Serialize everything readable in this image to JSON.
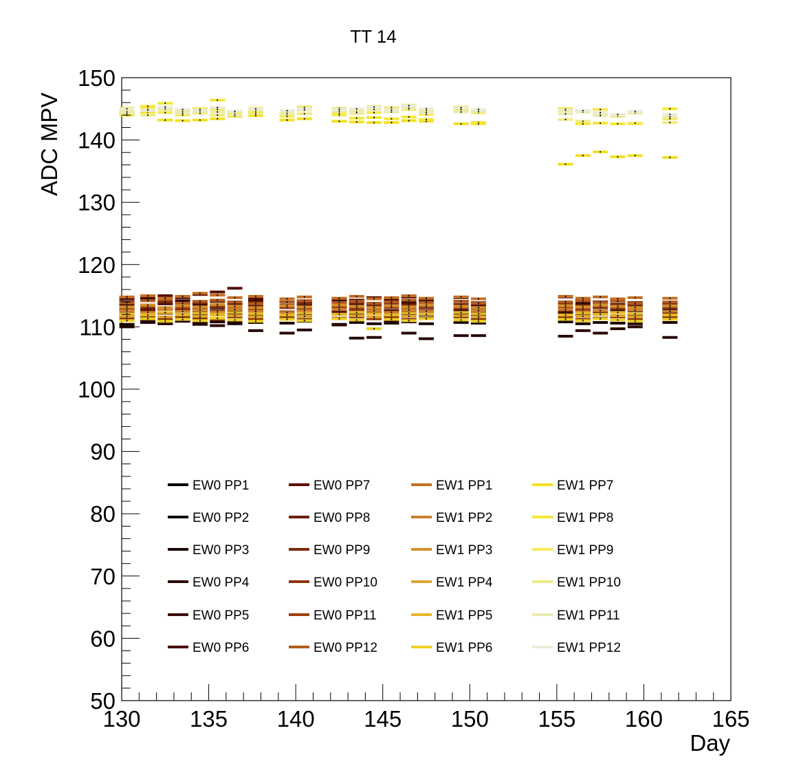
{
  "chart_data": {
    "type": "scatter",
    "title": "TT 14",
    "xlabel": "Day",
    "ylabel": "ADC MPV",
    "xlim": [
      130,
      165
    ],
    "ylim": [
      50,
      150
    ],
    "x_ticks": [
      "130",
      "135",
      "140",
      "145",
      "150",
      "155",
      "160",
      "165"
    ],
    "y_ticks": [
      "50",
      "60",
      "70",
      "80",
      "90",
      "100",
      "110",
      "120",
      "130",
      "140",
      "150"
    ],
    "grid": false,
    "legend_position": "lower-left",
    "days": [
      130.3,
      131.5,
      132.5,
      133.5,
      134.5,
      135.5,
      136.5,
      137.7,
      139.5,
      140.5,
      142.5,
      143.5,
      144.5,
      145.5,
      146.5,
      147.5,
      149.5,
      150.5,
      155.5,
      156.5,
      157.5,
      158.5,
      159.5,
      161.5
    ],
    "series": [
      {
        "name": "EW0 PP1",
        "color": "#000000",
        "values": [
          111.8,
          111.6,
          112.2,
          112.0,
          111.9,
          112.4,
          112.1,
          111.7,
          112.0,
          111.8,
          112.1,
          111.9,
          112.2,
          111.8,
          112.0,
          111.9,
          112.0,
          111.8,
          112.1,
          111.9,
          112.0,
          111.7,
          111.9,
          111.8
        ]
      },
      {
        "name": "EW0 PP2",
        "color": "#120804",
        "values": [
          112.8,
          112.5,
          113.0,
          112.7,
          112.9,
          113.1,
          112.6,
          112.9,
          113.2,
          112.8,
          112.5,
          112.9,
          112.7,
          112.6,
          112.9,
          112.5,
          112.8,
          112.6,
          112.9,
          112.7,
          112.5,
          112.8,
          112.6,
          112.9
        ]
      },
      {
        "name": "EW0 PP3",
        "color": "#1e0805",
        "values": [
          110.4,
          110.7,
          110.5,
          110.9,
          110.6,
          110.8,
          110.5,
          110.7,
          110.6,
          110.9,
          110.4,
          110.7,
          110.5,
          110.6,
          110.8,
          110.5,
          110.7,
          110.6,
          110.8,
          110.5,
          110.7,
          110.6,
          110.5,
          110.7
        ]
      },
      {
        "name": "EW0 PP4",
        "color": "#2c0806",
        "values": [
          110.0,
          110.9,
          110.6,
          111.0,
          110.4,
          110.2,
          110.9,
          109.4,
          109.0,
          109.5,
          110.3,
          108.2,
          108.3,
          110.9,
          109.0,
          108.1,
          108.6,
          108.6,
          108.5,
          109.4,
          109.0,
          109.7,
          110.0,
          108.3
        ]
      },
      {
        "name": "EW0 PP5",
        "color": "#3a0a08",
        "values": [
          114.0,
          114.6,
          113.8,
          114.2,
          113.9,
          114.1,
          113.7,
          114.3,
          114.0,
          113.8,
          114.1,
          114.0,
          113.8,
          114.0,
          113.9,
          113.6,
          114.1,
          113.8,
          113.5,
          113.8,
          113.9,
          113.6,
          113.7,
          113.5
        ]
      },
      {
        "name": "EW0 PP6",
        "color": "#4a0c08",
        "values": [
          113.5,
          113.0,
          113.7,
          113.4,
          113.6,
          113.2,
          113.8,
          113.4,
          113.1,
          113.5,
          113.3,
          113.6,
          113.2,
          113.4,
          113.7,
          113.1,
          113.3,
          113.0,
          113.6,
          113.3,
          113.1,
          113.5,
          113.2,
          113.4
        ]
      },
      {
        "name": "EW0 PP7",
        "color": "#5a0e06",
        "values": [
          114.5,
          114.9,
          115.0,
          114.7,
          115.2,
          115.6,
          116.2,
          114.5,
          114.0,
          114.2,
          114.5,
          114.3,
          114.7,
          114.4,
          114.8,
          114.3,
          114.7,
          113.4,
          114.8,
          114.3,
          114.0,
          114.2,
          113.9,
          113.7
        ]
      },
      {
        "name": "EW0 PP8",
        "color": "#6a1f08",
        "values": [
          112.3,
          112.6,
          112.2,
          112.7,
          112.4,
          112.6,
          112.3,
          112.5,
          112.4,
          112.7,
          112.3,
          112.6,
          112.2,
          112.5,
          112.3,
          112.6,
          112.4,
          112.2,
          112.5,
          112.6,
          112.3,
          112.4,
          112.7,
          112.3
        ]
      },
      {
        "name": "EW0 PP9",
        "color": "#7a2a0a",
        "values": [
          113.8,
          113.5,
          114.0,
          113.6,
          113.9,
          114.2,
          113.7,
          113.9,
          113.5,
          113.8,
          113.6,
          113.9,
          113.4,
          113.7,
          113.5,
          113.8,
          113.6,
          113.9,
          113.7,
          113.4,
          113.8,
          113.5,
          113.6,
          113.9
        ]
      },
      {
        "name": "EW0 PP10",
        "color": "#8c3508",
        "values": [
          111.3,
          111.5,
          111.2,
          111.6,
          111.4,
          111.2,
          111.6,
          111.3,
          111.5,
          111.2,
          111.4,
          111.6,
          111.3,
          111.5,
          111.2,
          111.4,
          111.6,
          111.3,
          111.5,
          111.2,
          111.4,
          111.6,
          111.3,
          111.5
        ]
      },
      {
        "name": "EW0 PP11",
        "color": "#a04010",
        "values": [
          112.9,
          113.2,
          112.8,
          113.1,
          112.9,
          113.3,
          113.0,
          112.8,
          113.1,
          112.9,
          113.2,
          113.0,
          112.8,
          113.1,
          112.9,
          113.2,
          113.0,
          112.8,
          113.1,
          112.9,
          113.2,
          113.0,
          112.8,
          113.1
        ]
      },
      {
        "name": "EW0 PP12",
        "color": "#b25c20",
        "values": [
          113.9,
          114.2,
          114.4,
          113.8,
          114.1,
          114.3,
          114.0,
          113.7,
          114.0,
          114.2,
          113.9,
          114.1,
          113.8,
          114.0,
          114.3,
          113.9,
          114.1,
          113.8,
          114.0,
          114.2,
          113.9,
          114.1,
          113.8,
          114.0
        ]
      },
      {
        "name": "EW1 PP1",
        "color": "#c36f24",
        "values": [
          114.8,
          115.0,
          114.6,
          114.9,
          115.4,
          115.1,
          114.7,
          114.9,
          114.5,
          114.8,
          114.6,
          114.9,
          114.5,
          114.7,
          115.0,
          114.6,
          114.8,
          114.5,
          114.9,
          114.6,
          114.8,
          114.5,
          114.7,
          114.6
        ]
      },
      {
        "name": "EW1 PP2",
        "color": "#cc8030",
        "values": [
          112.6,
          112.3,
          112.8,
          112.5,
          112.7,
          112.4,
          112.8,
          112.5,
          112.3,
          112.6,
          112.8,
          112.4,
          112.6,
          112.3,
          112.7,
          112.5,
          112.3,
          112.6,
          112.8,
          112.4,
          112.6,
          112.3,
          112.7,
          112.5
        ]
      },
      {
        "name": "EW1 PP3",
        "color": "#d4902e",
        "values": [
          113.2,
          113.5,
          113.1,
          113.4,
          113.2,
          113.6,
          113.3,
          113.1,
          113.4,
          113.2,
          113.5,
          113.3,
          113.1,
          113.4,
          113.2,
          113.5,
          113.3,
          113.1,
          113.4,
          113.2,
          113.5,
          113.3,
          113.1,
          113.4
        ]
      },
      {
        "name": "EW1 PP4",
        "color": "#dea430",
        "values": [
          111.7,
          112.0,
          111.6,
          111.9,
          111.7,
          112.1,
          111.8,
          111.6,
          111.9,
          111.7,
          112.0,
          111.8,
          111.6,
          111.9,
          111.7,
          112.0,
          111.8,
          111.6,
          111.9,
          111.7,
          112.0,
          111.8,
          111.6,
          111.9
        ]
      },
      {
        "name": "EW1 PP5",
        "color": "#e6b82a",
        "values": [
          112.1,
          111.9,
          112.3,
          112.0,
          112.2,
          111.9,
          112.3,
          112.1,
          111.9,
          112.2,
          112.0,
          112.3,
          112.1,
          111.9,
          112.2,
          112.0,
          112.3,
          112.1,
          111.9,
          112.2,
          112.0,
          112.3,
          112.1,
          111.9
        ]
      },
      {
        "name": "EW1 PP6",
        "color": "#edcf22",
        "values": [
          111.0,
          111.3,
          110.9,
          111.2,
          111.0,
          111.4,
          111.1,
          110.9,
          111.2,
          111.0,
          111.3,
          111.1,
          109.7,
          111.2,
          111.0,
          111.3,
          111.1,
          110.9,
          111.2,
          111.0,
          111.3,
          111.1,
          110.9,
          111.2
        ]
      },
      {
        "name": "EW1 PP7",
        "color": "#f2e026",
        "values": [
          144.0,
          144.5,
          143.2,
          143.1,
          143.2,
          143.4,
          143.8,
          143.9,
          143.2,
          143.4,
          143.0,
          142.9,
          142.8,
          142.8,
          143.1,
          143.0,
          142.6,
          142.8,
          136.1,
          137.5,
          138.1,
          137.3,
          137.5,
          137.2
        ]
      },
      {
        "name": "EW1 PP8",
        "color": "#f4e83a",
        "values": [
          145.1,
          145.4,
          145.9,
          144.8,
          145.0,
          146.4,
          144.2,
          144.5,
          144.6,
          145.3,
          144.3,
          143.5,
          143.6,
          143.4,
          143.7,
          143.3,
          145.3,
          142.6,
          145.0,
          142.6,
          142.7,
          142.6,
          142.6,
          145.0
        ]
      },
      {
        "name": "EW1 PP9",
        "color": "#f5ea5c",
        "values": [
          144.6,
          145.0,
          144.4,
          144.0,
          144.6,
          144.9,
          144.4,
          145.1,
          143.8,
          144.2,
          144.0,
          144.3,
          144.4,
          144.6,
          144.9,
          144.1,
          144.6,
          144.4,
          144.7,
          144.6,
          144.9,
          143.8,
          142.7,
          143.4
        ]
      },
      {
        "name": "EW1 PP10",
        "color": "#f0eb88",
        "values": [
          144.2,
          144.0,
          144.9,
          144.6,
          144.3,
          144.0,
          144.6,
          144.2,
          144.5,
          144.2,
          145.1,
          144.6,
          145.4,
          145.2,
          145.6,
          144.7,
          144.9,
          144.7,
          143.3,
          143.0,
          144.2,
          143.8,
          144.3,
          142.8
        ]
      },
      {
        "name": "EW1 PP11",
        "color": "#ebebb4",
        "values": [
          144.5,
          144.7,
          145.0,
          144.3,
          144.6,
          144.5,
          144.0,
          144.8,
          144.2,
          144.8,
          144.6,
          144.4,
          144.9,
          144.5,
          145.1,
          144.4,
          144.5,
          144.6,
          144.2,
          144.5,
          143.9,
          144.0,
          144.4,
          143.7
        ]
      },
      {
        "name": "EW1 PP12",
        "color": "#ecebd8",
        "values": [
          145.0,
          144.8,
          145.3,
          144.9,
          144.8,
          145.2,
          144.6,
          145.0,
          144.7,
          145.1,
          144.9,
          145.0,
          145.3,
          144.8,
          145.5,
          145.0,
          145.2,
          144.9,
          144.8,
          144.7,
          144.4,
          144.1,
          144.6,
          144.1
        ]
      }
    ]
  }
}
